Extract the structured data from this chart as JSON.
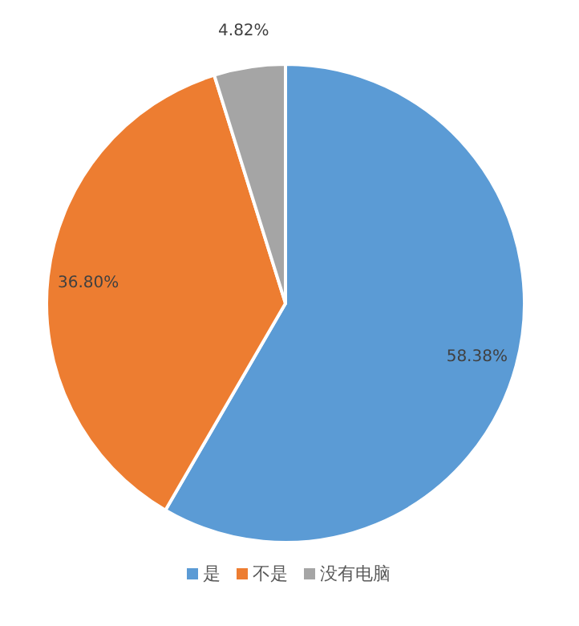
{
  "chart_data": {
    "type": "pie",
    "categories": [
      "是",
      "不是",
      "没有电脑"
    ],
    "values": [
      58.38,
      36.8,
      4.82
    ],
    "colors": [
      "#5b9bd5",
      "#ed7d31",
      "#a5a5a5"
    ],
    "value_labels": [
      "58.38%",
      "36.80%",
      "4.82%"
    ],
    "legend": "bottom"
  }
}
